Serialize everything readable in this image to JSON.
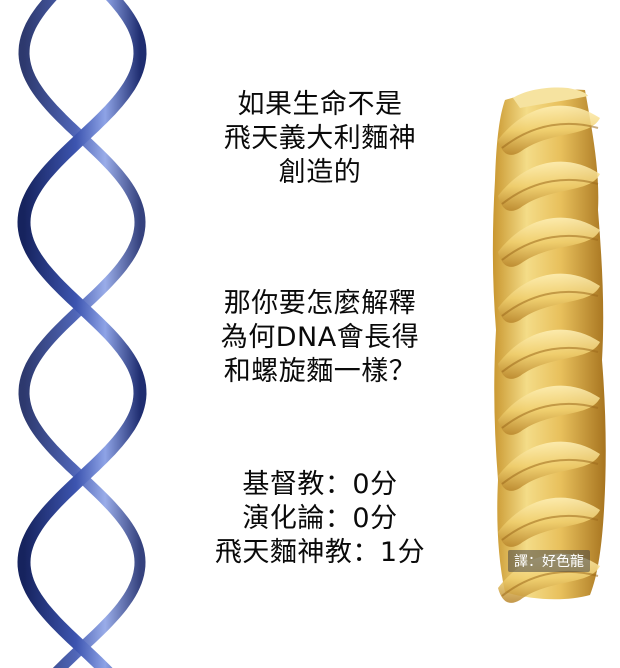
{
  "question": {
    "lines": [
      "如果生命不是",
      "飛天義大利麵神",
      "創造的"
    ]
  },
  "challenge": {
    "lines": [
      "那你要怎麼解釋",
      "為何DNA會長得",
      "和螺旋麵一樣？"
    ]
  },
  "score": {
    "lines": [
      "基督教：0分",
      "演化論：0分",
      "飛天麵神教：1分"
    ]
  },
  "credit": {
    "text": "譯：好色龍"
  },
  "images": {
    "left": "dna-double-helix-icon",
    "right": "fusilli-pasta-icon"
  },
  "colors": {
    "dna_dark": "#1c2a66",
    "dna_mid": "#3b4f9e",
    "dna_light": "#b9c6f0",
    "pasta_light": "#f3dc8c",
    "pasta_mid": "#e2b64e",
    "pasta_dark": "#b7852a"
  }
}
